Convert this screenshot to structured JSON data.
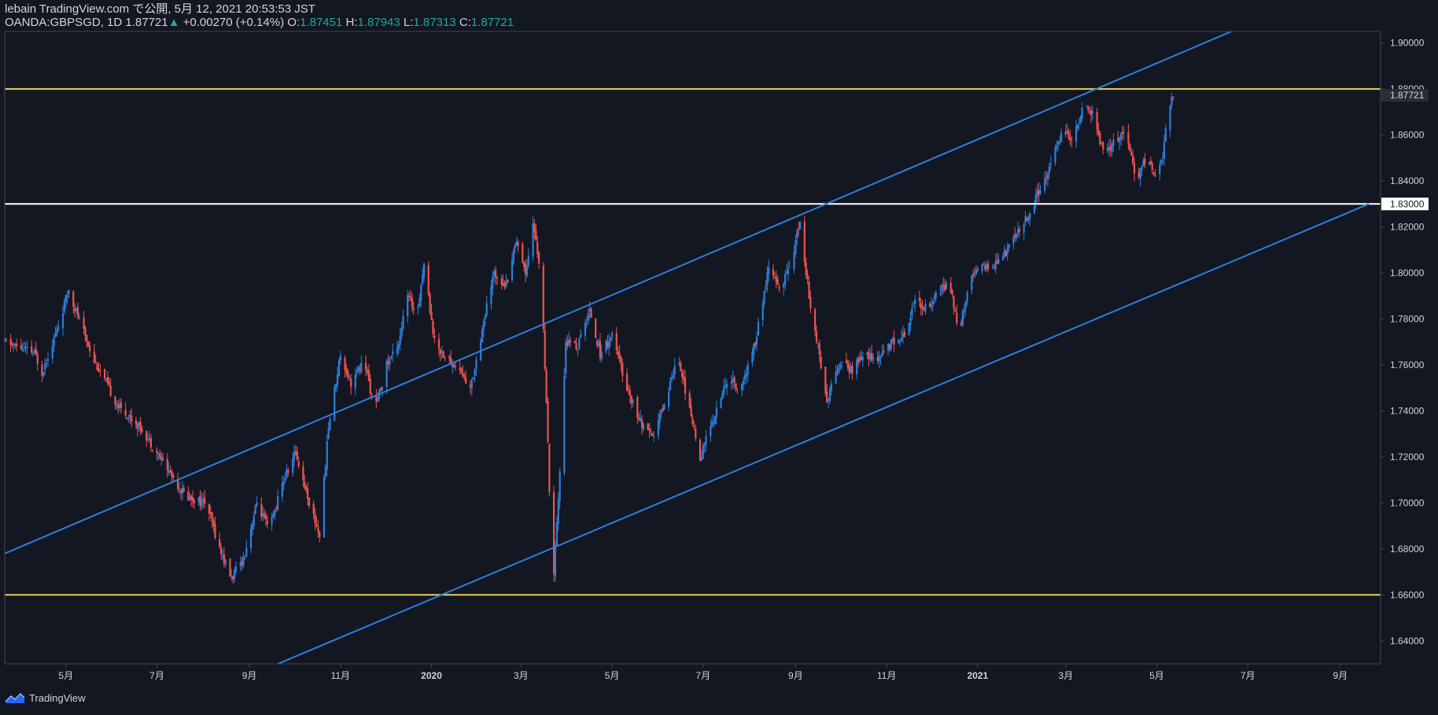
{
  "header": {
    "publisher_line": "lebain TradingView.com で公開, 5月 12, 2021 20:53:53 JST",
    "symbol": "OANDA:GBPSGD, 1D",
    "last": "1.87721",
    "change_arrow": "▲",
    "change": "+0.00270 (+0.14%)",
    "o_label": "O:",
    "o_value": "1.87451",
    "h_label": "H:",
    "h_value": "1.87943",
    "l_label": "L:",
    "l_value": "1.87313",
    "c_label": "C:",
    "c_value": "1.87721"
  },
  "footer": {
    "brand": "TradingView",
    "logo_icon": "tradingview-logo-icon"
  },
  "colors": {
    "background": "#131722",
    "up": "#2f7ed8",
    "down": "#ef5350",
    "trendline": "#2f7ed8",
    "horizontal_yellow": "#e8d15a",
    "horizontal_white": "#ffffff",
    "axis_text": "#d1d4dc",
    "axis_line": "#434651"
  },
  "chart_data": {
    "type": "candlestick",
    "symbol": "OANDA:GBPSGD",
    "interval": "1D",
    "ylim": [
      1.63,
      1.905
    ],
    "y_ticks": [
      "1.90000",
      "1.88000",
      "1.86000",
      "1.84000",
      "1.82000",
      "1.80000",
      "1.78000",
      "1.76000",
      "1.74000",
      "1.72000",
      "1.70000",
      "1.68000",
      "1.66000",
      "1.64000"
    ],
    "x_ticks": [
      "5月",
      "7月",
      "9月",
      "11月",
      "2020",
      "3月",
      "5月",
      "7月",
      "9月",
      "11月",
      "2021",
      "3月",
      "5月",
      "7月",
      "9月"
    ],
    "x_tick_dates": [
      "2019-05-01",
      "2019-07-01",
      "2019-09-01",
      "2019-11-01",
      "2020-01-01",
      "2020-03-01",
      "2020-05-01",
      "2020-07-01",
      "2020-09-01",
      "2020-11-01",
      "2021-01-01",
      "2021-03-01",
      "2021-05-01",
      "2021-07-01",
      "2021-09-01"
    ],
    "price_labels": [
      {
        "value": 1.87721,
        "label": "1.87721",
        "style": "last"
      },
      {
        "value": 1.83,
        "label": "1.83000",
        "style": "white"
      }
    ],
    "horizontal_lines": [
      {
        "value": 1.88,
        "color": "yellow"
      },
      {
        "value": 1.83,
        "color": "white"
      },
      {
        "value": 1.66,
        "color": "yellow"
      }
    ],
    "trend_lines": [
      {
        "x1": "2019-03-21",
        "y1": 1.678,
        "x2": "2021-06-20",
        "y2": 1.905
      },
      {
        "x1": "2019-09-20",
        "y1": 1.63,
        "x2": "2021-09-20",
        "y2": 1.83
      }
    ],
    "price_path": [
      [
        "2019-03-21",
        1.77
      ],
      [
        "2019-04-10",
        1.765
      ],
      [
        "2019-04-15",
        1.757
      ],
      [
        "2019-04-25",
        1.775
      ],
      [
        "2019-05-03",
        1.793
      ],
      [
        "2019-05-08",
        1.783
      ],
      [
        "2019-05-20",
        1.762
      ],
      [
        "2019-06-05",
        1.742
      ],
      [
        "2019-06-20",
        1.733
      ],
      [
        "2019-07-05",
        1.718
      ],
      [
        "2019-07-20",
        1.703
      ],
      [
        "2019-08-03",
        1.7
      ],
      [
        "2019-08-12",
        1.68
      ],
      [
        "2019-08-20",
        1.667
      ],
      [
        "2019-08-28",
        1.676
      ],
      [
        "2019-09-06",
        1.7
      ],
      [
        "2019-09-14",
        1.688
      ],
      [
        "2019-09-24",
        1.71
      ],
      [
        "2019-10-02",
        1.722
      ],
      [
        "2019-10-12",
        1.698
      ],
      [
        "2019-10-18",
        1.686
      ],
      [
        "2019-10-24",
        1.733
      ],
      [
        "2019-11-01",
        1.765
      ],
      [
        "2019-11-08",
        1.752
      ],
      [
        "2019-11-17",
        1.762
      ],
      [
        "2019-11-24",
        1.74
      ],
      [
        "2019-12-02",
        1.76
      ],
      [
        "2019-12-10",
        1.77
      ],
      [
        "2019-12-16",
        1.79
      ],
      [
        "2019-12-22",
        1.782
      ],
      [
        "2019-12-27",
        1.804
      ],
      [
        "2020-01-03",
        1.77
      ],
      [
        "2020-01-12",
        1.762
      ],
      [
        "2020-01-20",
        1.758
      ],
      [
        "2020-01-27",
        1.749
      ],
      [
        "2020-02-04",
        1.776
      ],
      [
        "2020-02-12",
        1.8
      ],
      [
        "2020-02-20",
        1.795
      ],
      [
        "2020-02-27",
        1.815
      ],
      [
        "2020-03-04",
        1.8
      ],
      [
        "2020-03-09",
        1.822
      ],
      [
        "2020-03-13",
        1.805
      ],
      [
        "2020-03-16",
        1.775
      ],
      [
        "2020-03-19",
        1.725
      ],
      [
        "2020-03-21",
        1.682
      ],
      [
        "2020-03-23",
        1.67
      ],
      [
        "2020-03-26",
        1.7
      ],
      [
        "2020-03-31",
        1.77
      ],
      [
        "2020-04-08",
        1.768
      ],
      [
        "2020-04-16",
        1.784
      ],
      [
        "2020-04-23",
        1.765
      ],
      [
        "2020-05-01",
        1.773
      ],
      [
        "2020-05-10",
        1.752
      ],
      [
        "2020-05-20",
        1.735
      ],
      [
        "2020-05-28",
        1.728
      ],
      [
        "2020-06-06",
        1.745
      ],
      [
        "2020-06-14",
        1.765
      ],
      [
        "2020-06-22",
        1.74
      ],
      [
        "2020-06-29",
        1.72
      ],
      [
        "2020-07-07",
        1.735
      ],
      [
        "2020-07-18",
        1.755
      ],
      [
        "2020-07-26",
        1.748
      ],
      [
        "2020-08-05",
        1.77
      ],
      [
        "2020-08-14",
        1.802
      ],
      [
        "2020-08-22",
        1.792
      ],
      [
        "2020-08-30",
        1.808
      ],
      [
        "2020-09-04",
        1.822
      ],
      [
        "2020-09-10",
        1.79
      ],
      [
        "2020-09-16",
        1.768
      ],
      [
        "2020-09-22",
        1.745
      ],
      [
        "2020-09-30",
        1.76
      ],
      [
        "2020-10-09",
        1.758
      ],
      [
        "2020-10-18",
        1.765
      ],
      [
        "2020-10-26",
        1.762
      ],
      [
        "2020-11-04",
        1.77
      ],
      [
        "2020-11-12",
        1.772
      ],
      [
        "2020-11-20",
        1.788
      ],
      [
        "2020-11-28",
        1.785
      ],
      [
        "2020-12-06",
        1.792
      ],
      [
        "2020-12-13",
        1.795
      ],
      [
        "2020-12-20",
        1.774
      ],
      [
        "2020-12-27",
        1.8
      ],
      [
        "2021-01-05",
        1.802
      ],
      [
        "2021-01-13",
        1.804
      ],
      [
        "2021-01-21",
        1.81
      ],
      [
        "2021-01-29",
        1.818
      ],
      [
        "2021-02-06",
        1.828
      ],
      [
        "2021-02-13",
        1.838
      ],
      [
        "2021-02-20",
        1.85
      ],
      [
        "2021-02-27",
        1.862
      ],
      [
        "2021-03-06",
        1.858
      ],
      [
        "2021-03-13",
        1.872
      ],
      [
        "2021-03-20",
        1.868
      ],
      [
        "2021-03-27",
        1.85
      ],
      [
        "2021-04-03",
        1.858
      ],
      [
        "2021-04-10",
        1.862
      ],
      [
        "2021-04-17",
        1.84
      ],
      [
        "2021-04-24",
        1.85
      ],
      [
        "2021-05-01",
        1.84
      ],
      [
        "2021-05-05",
        1.852
      ],
      [
        "2021-05-08",
        1.868
      ],
      [
        "2021-05-12",
        1.877
      ]
    ]
  }
}
